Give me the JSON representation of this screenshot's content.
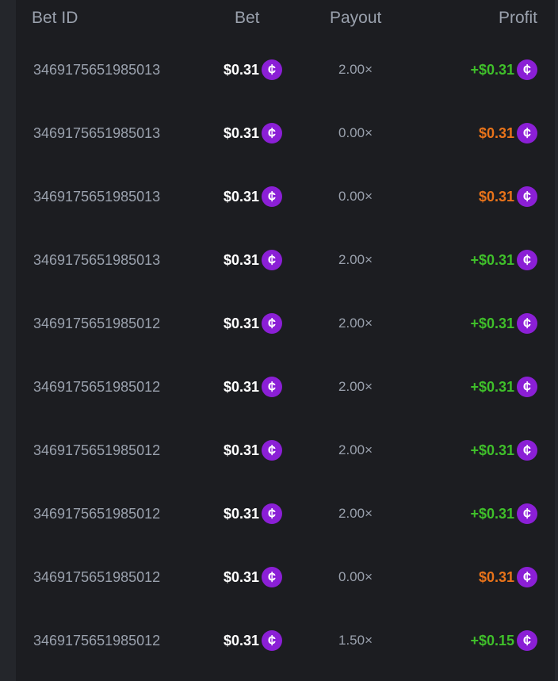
{
  "colors": {
    "win": "#3fbf2a",
    "loss": "#e8731a",
    "coin": "#8b1fd6"
  },
  "columns": {
    "bet_id": "Bet ID",
    "bet": "Bet",
    "payout": "Payout",
    "profit": "Profit"
  },
  "coin_icon": "cent-coin-icon",
  "rows": [
    {
      "id": "3469175651985013",
      "bet": "$0.31",
      "payout": "2.00×",
      "profit": "+$0.31",
      "win": true
    },
    {
      "id": "3469175651985013",
      "bet": "$0.31",
      "payout": "0.00×",
      "profit": "$0.31",
      "win": false
    },
    {
      "id": "3469175651985013",
      "bet": "$0.31",
      "payout": "0.00×",
      "profit": "$0.31",
      "win": false
    },
    {
      "id": "3469175651985013",
      "bet": "$0.31",
      "payout": "2.00×",
      "profit": "+$0.31",
      "win": true
    },
    {
      "id": "3469175651985012",
      "bet": "$0.31",
      "payout": "2.00×",
      "profit": "+$0.31",
      "win": true
    },
    {
      "id": "3469175651985012",
      "bet": "$0.31",
      "payout": "2.00×",
      "profit": "+$0.31",
      "win": true
    },
    {
      "id": "3469175651985012",
      "bet": "$0.31",
      "payout": "2.00×",
      "profit": "+$0.31",
      "win": true
    },
    {
      "id": "3469175651985012",
      "bet": "$0.31",
      "payout": "2.00×",
      "profit": "+$0.31",
      "win": true
    },
    {
      "id": "3469175651985012",
      "bet": "$0.31",
      "payout": "0.00×",
      "profit": "$0.31",
      "win": false
    },
    {
      "id": "3469175651985012",
      "bet": "$0.31",
      "payout": "1.50×",
      "profit": "+$0.15",
      "win": true
    }
  ]
}
